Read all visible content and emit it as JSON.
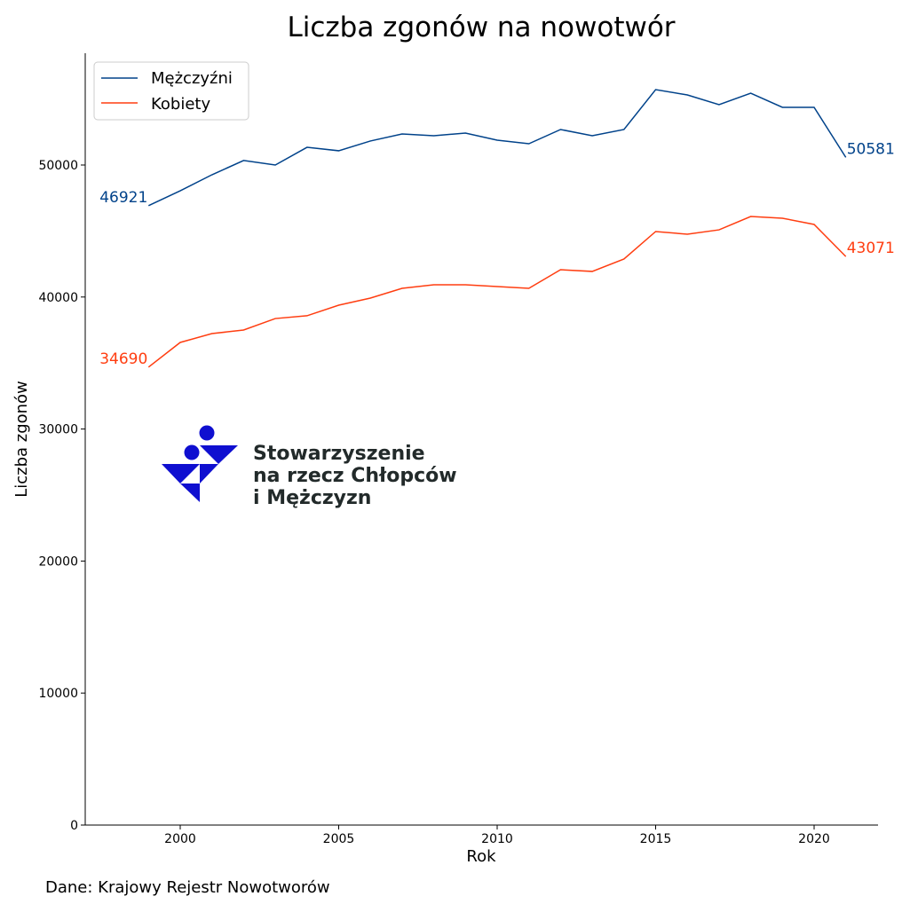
{
  "chart_data": {
    "type": "line",
    "title": "Liczba zgonów na nowotwór",
    "xlabel": "Rok",
    "ylabel": "Liczba zgonów",
    "xlim": [
      1997,
      2022
    ],
    "ylim": [
      0,
      58500
    ],
    "xticks": [
      2000,
      2005,
      2010,
      2015,
      2020
    ],
    "yticks": [
      0,
      10000,
      20000,
      30000,
      40000,
      50000
    ],
    "grid": false,
    "legend_position": "top-left",
    "x": [
      1999,
      2000,
      2001,
      2002,
      2003,
      2004,
      2005,
      2006,
      2007,
      2008,
      2009,
      2010,
      2011,
      2012,
      2013,
      2014,
      2015,
      2016,
      2017,
      2018,
      2019,
      2020,
      2021
    ],
    "series": [
      {
        "name": "Mężczyźni",
        "color": "#00428a",
        "values": [
          46921,
          48050,
          49260,
          50340,
          50000,
          51340,
          51080,
          51820,
          52350,
          52220,
          52420,
          51880,
          51610,
          52690,
          52220,
          52690,
          55710,
          55310,
          54570,
          55440,
          54370,
          54370,
          50581
        ],
        "start_label": "46921",
        "end_label": "50581"
      },
      {
        "name": "Kobiety",
        "color": "#ff3d10",
        "values": [
          34690,
          36560,
          37230,
          37500,
          38370,
          38580,
          39380,
          39920,
          40660,
          40930,
          40930,
          40790,
          40660,
          42070,
          41940,
          42880,
          44960,
          44760,
          45090,
          46100,
          45970,
          45500,
          43071
        ],
        "start_label": "34690",
        "end_label": "43071"
      }
    ]
  },
  "source": "Dane: Krajowy Rejestr Nowotworów",
  "logo": {
    "lines": [
      "Stowarzyszenie",
      "na rzecz Chłopców",
      "i Mężczyzn"
    ],
    "color": "#0f0fd0",
    "text_color": "#222a2a"
  }
}
